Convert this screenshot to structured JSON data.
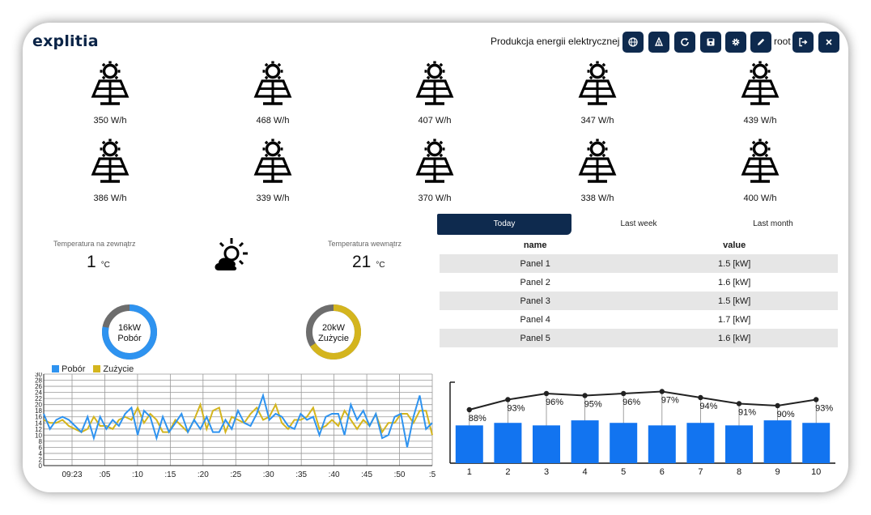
{
  "header": {
    "logo_text": "explitia",
    "title": "Produkcja energii elektrycznej",
    "user": "root",
    "toolbar": [
      {
        "icon": "globe-icon"
      },
      {
        "icon": "sort-icon"
      },
      {
        "icon": "refresh-icon"
      },
      {
        "icon": "save-icon"
      },
      {
        "icon": "gear-icon"
      },
      {
        "icon": "edit-icon"
      }
    ],
    "logout_icon": "logout-icon",
    "close_icon": "close-icon"
  },
  "panels": [
    {
      "value": "350 W/h"
    },
    {
      "value": "468 W/h"
    },
    {
      "value": "407 W/h"
    },
    {
      "value": "347 W/h"
    },
    {
      "value": "439 W/h"
    },
    {
      "value": "386 W/h"
    },
    {
      "value": "339 W/h"
    },
    {
      "value": "370 W/h"
    },
    {
      "value": "338 W/h"
    },
    {
      "value": "400 W/h"
    }
  ],
  "weather": {
    "outside_label": "Temperatura na zewnątrz",
    "outside_value": "1",
    "inside_label": "Temperatura wewnątrz",
    "inside_value": "21",
    "unit": "°C",
    "icon": "partly-cloudy-icon"
  },
  "gauges": [
    {
      "value": "16kW",
      "label": "Pobór",
      "fraction": 0.78,
      "color": "#2e93f0"
    },
    {
      "value": "20kW",
      "label": "Zużycie",
      "fraction": 0.66,
      "color": "#d4b51e"
    }
  ],
  "tabs": [
    {
      "label": "Today",
      "active": true
    },
    {
      "label": "Last week",
      "active": false
    },
    {
      "label": "Last month",
      "active": false
    }
  ],
  "table": {
    "headers": [
      "name",
      "value"
    ],
    "rows": [
      [
        "Panel 1",
        "1.5 [kW]"
      ],
      [
        "Panel 2",
        "1.6 [kW]"
      ],
      [
        "Panel 3",
        "1.5 [kW]"
      ],
      [
        "Panel 4",
        "1.7 [kW]"
      ],
      [
        "Panel 5",
        "1.6 [kW]"
      ]
    ]
  },
  "chart_data": [
    {
      "type": "line",
      "series": [
        {
          "name": "Pobór",
          "color": "#2e93f0",
          "values": [
            17,
            12,
            15,
            16,
            15,
            13,
            11,
            16,
            9,
            16,
            12,
            15,
            13,
            17,
            19,
            10,
            18,
            16,
            9,
            16,
            11,
            14,
            17,
            11,
            15,
            12,
            16,
            11,
            11,
            15,
            12,
            18,
            14,
            13,
            17,
            23,
            15,
            17,
            16,
            13,
            12,
            17,
            15,
            16,
            10,
            16,
            17,
            17,
            10,
            20,
            15,
            18,
            13,
            17,
            9,
            10,
            16,
            17,
            6,
            16,
            23,
            12,
            14
          ],
          "pen": [
            1,
            1,
            1,
            1,
            1,
            1,
            1,
            1,
            1,
            1,
            1,
            1,
            1,
            1,
            1,
            1,
            1,
            1,
            1,
            1,
            1,
            1,
            1,
            1,
            1,
            1,
            1,
            1,
            1,
            1,
            1,
            1,
            1,
            1,
            1,
            1,
            1,
            1,
            1,
            1,
            1,
            1,
            1,
            1,
            1,
            1,
            1,
            1,
            1,
            1,
            1,
            1,
            1,
            1,
            1,
            1,
            1,
            1,
            1,
            1,
            1,
            1,
            1
          ]
        },
        {
          "name": "Zużycie",
          "color": "#d4b51e",
          "values": [
            15,
            14,
            14,
            15,
            13,
            12,
            11,
            12,
            16,
            13,
            13,
            12,
            15,
            16,
            15,
            19,
            14,
            17,
            15,
            11,
            11,
            15,
            13,
            11,
            15,
            20,
            12,
            18,
            19,
            11,
            16,
            15,
            14,
            17,
            19,
            15,
            16,
            20,
            14,
            12,
            15,
            15,
            16,
            19,
            12,
            13,
            15,
            13,
            18,
            15,
            12,
            15,
            13,
            17,
            11,
            14,
            14,
            17,
            17,
            14,
            18,
            18,
            10
          ]
        }
      ],
      "x_tick_labels": [
        "09:23",
        ":05",
        ":10",
        ":15",
        ":20",
        ":25",
        ":30",
        ":35",
        ":40",
        ":45",
        ":50",
        ":5"
      ],
      "y_ticks": [
        0,
        2,
        4,
        6,
        8,
        10,
        12,
        14,
        16,
        18,
        20,
        22,
        24,
        26,
        28,
        30
      ],
      "ylim": [
        0,
        30
      ],
      "legend": "top-left"
    },
    {
      "type": "bar",
      "categories": [
        "1",
        "2",
        "3",
        "4",
        "5",
        "6",
        "7",
        "8",
        "9",
        "10"
      ],
      "values": [
        1.5,
        1.6,
        1.5,
        1.7,
        1.6,
        1.5,
        1.6,
        1.5,
        1.7,
        1.6
      ],
      "bar_color": "#1274f0",
      "line_series": {
        "values": [
          88,
          93,
          96,
          95,
          96,
          97,
          94,
          91,
          90,
          93
        ],
        "labels": [
          "88%",
          "93%",
          "96%",
          "95%",
          "96%",
          "97%",
          "94%",
          "91%",
          "90%",
          "93%"
        ]
      }
    }
  ]
}
